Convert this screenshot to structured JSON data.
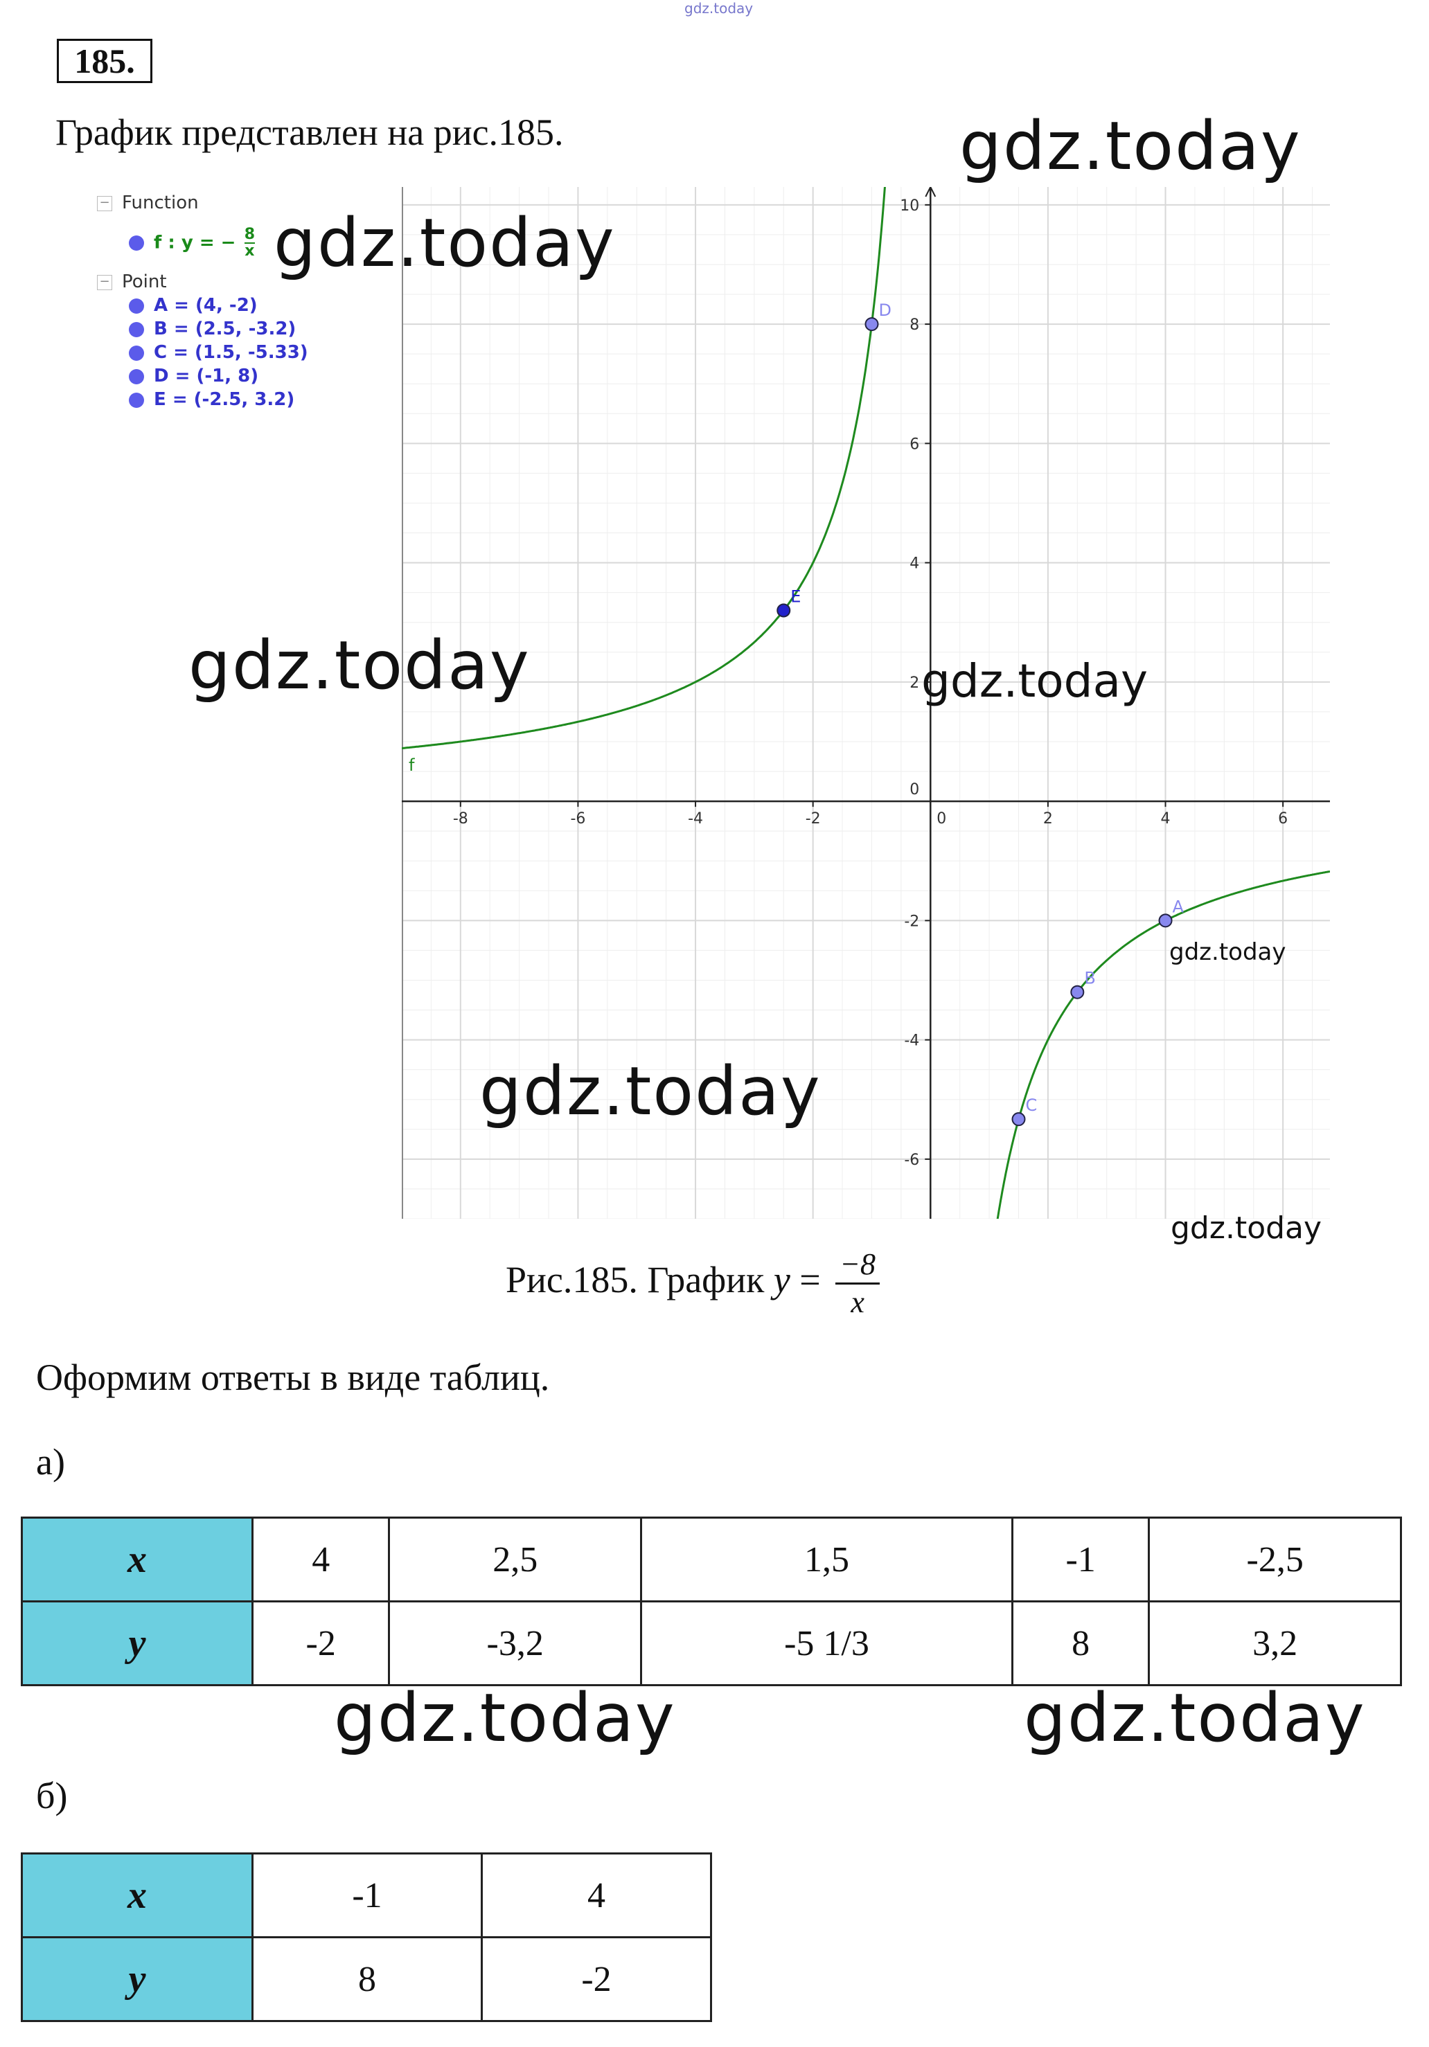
{
  "top_watermark": "gdz.today",
  "problem_number": "185.",
  "intro_text": "График представлен на рис.185.",
  "watermarks": [
    "gdz.today",
    "gdz.today",
    "gdz.today",
    "gdz.today",
    "gdz.today",
    "gdz.today",
    "gdz.today",
    "gdz.today",
    "gdz.today",
    "gdz.today"
  ],
  "legend": {
    "function_header": "Function",
    "function_label": "f : y = −",
    "function_num": "8",
    "function_den": "x",
    "point_header": "Point",
    "points": [
      "A = (4, -2)",
      "B = (2.5, -3.2)",
      "C = (1.5, -5.33)",
      "D = (-1, 8)",
      "E = (-2.5, 3.2)"
    ]
  },
  "chart_data": {
    "type": "line",
    "function": "y = -8/x",
    "xlim": [
      -9,
      6.8
    ],
    "ylim": [
      -7,
      10.3
    ],
    "x_ticks": [
      -8,
      -6,
      -4,
      -2,
      0,
      2,
      4,
      6
    ],
    "x_tick_labels": [
      "-8",
      "-6",
      "-4",
      "-2",
      "0",
      "2",
      "4",
      "6"
    ],
    "y_ticks": [
      -6,
      -4,
      -2,
      0,
      2,
      4,
      6,
      8,
      10
    ],
    "y_tick_labels": [
      "-6",
      "-4",
      "-2",
      "0",
      "2",
      "4",
      "6",
      "8",
      "10"
    ],
    "grid": true,
    "series_label": "f",
    "points": [
      {
        "name": "A",
        "x": 4,
        "y": -2
      },
      {
        "name": "B",
        "x": 2.5,
        "y": -3.2
      },
      {
        "name": "C",
        "x": 1.5,
        "y": -5.33
      },
      {
        "name": "D",
        "x": -1,
        "y": 8
      },
      {
        "name": "E",
        "x": -2.5,
        "y": 3.2
      }
    ],
    "colors": {
      "curve": "#1e8a1e",
      "point": "#8888ee",
      "point_dark": "#2222cc",
      "grid": "#d8d8d8"
    }
  },
  "caption": {
    "prefix": "Рис.185. График ",
    "var": "y",
    "eq": " = ",
    "num": "−8",
    "den": "x"
  },
  "sentence": "Оформим ответы в виде таблиц.",
  "part_a_label": "а)",
  "table_a": {
    "x_label": "x",
    "y_label": "y",
    "x": [
      "4",
      "2,5",
      "1,5",
      "-1",
      "-2,5"
    ],
    "y": [
      "-2",
      "-3,2",
      "-5 1/3",
      "8",
      "3,2"
    ]
  },
  "part_b_label": "б)",
  "table_b": {
    "x_label": "x",
    "y_label": "y",
    "x": [
      "-1",
      "4"
    ],
    "y": [
      "8",
      "-2"
    ]
  },
  "header_color": "#6ccfe0"
}
